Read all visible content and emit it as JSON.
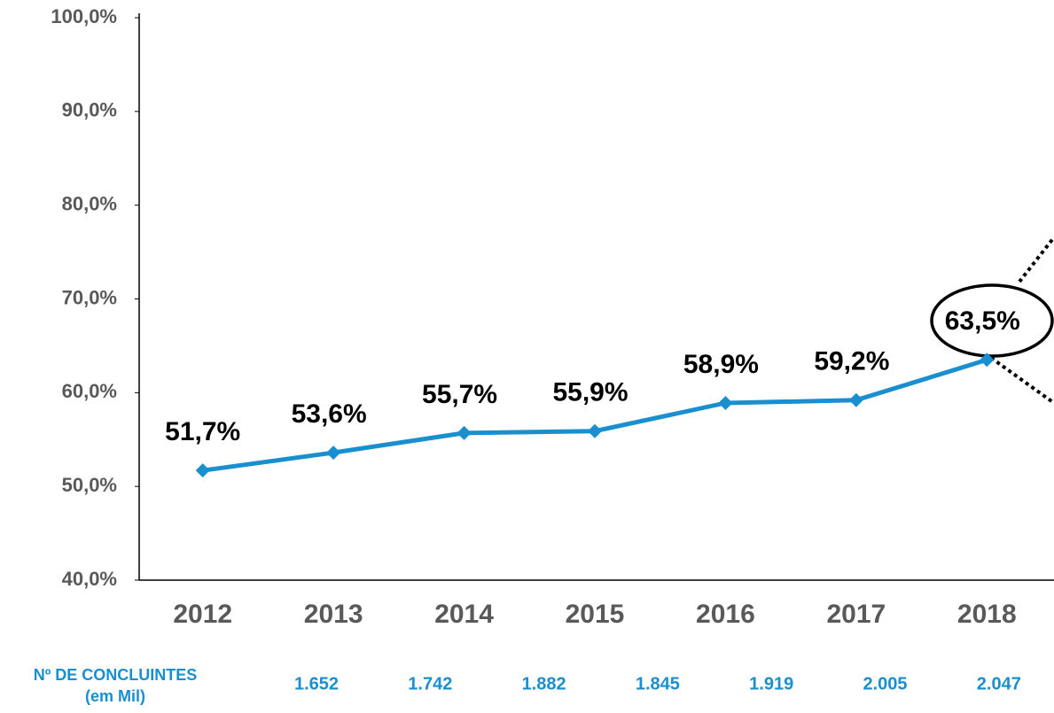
{
  "chart_data": {
    "type": "line",
    "categories": [
      "2012",
      "2013",
      "2014",
      "2015",
      "2016",
      "2017",
      "2018"
    ],
    "series": [
      {
        "color": "#1a8fd0",
        "values": [
          51.7,
          53.6,
          55.7,
          55.9,
          58.9,
          59.2,
          63.5
        ],
        "value_labels": [
          "51,7%",
          "53,6%",
          "55,7%",
          "55,9%",
          "58,9%",
          "59,2%",
          "63,5%"
        ]
      }
    ],
    "ylim": [
      40,
      100
    ],
    "yticks": [
      {
        "value": 40,
        "label": "40,0%"
      },
      {
        "value": 50,
        "label": "50,0%"
      },
      {
        "value": 60,
        "label": "60,0%"
      },
      {
        "value": 70,
        "label": "70,0%"
      },
      {
        "value": 80,
        "label": "80,0%"
      },
      {
        "value": 90,
        "label": "90,0%"
      },
      {
        "value": 100,
        "label": "100,0%"
      }
    ],
    "grid": false
  },
  "table": {
    "header": [
      "Nº DE CONCLUINTES",
      "(em Mil)"
    ],
    "cells": [
      "1.652",
      "1.742",
      "1.882",
      "1.845",
      "1.919",
      "2.005",
      "2.047"
    ]
  }
}
